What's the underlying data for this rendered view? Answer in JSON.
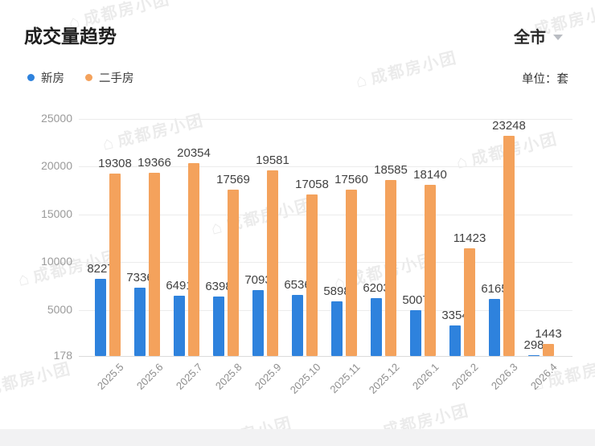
{
  "header": {
    "title": "成交量趋势",
    "region_selector": {
      "label": "全市",
      "dropdown_icon": "chevron-down-icon"
    },
    "unit_label": "单位：套"
  },
  "legend": [
    {
      "label": "新房",
      "color": "#2e82dd"
    },
    {
      "label": "二手房",
      "color": "#f4a25c"
    }
  ],
  "watermark": {
    "icon": "house-icon",
    "text": "成都房小团"
  },
  "chart_data": {
    "type": "bar",
    "title": "成交量趋势",
    "unit": "套",
    "categories": [
      "2025.5",
      "2025.6",
      "2025.7",
      "2025.8",
      "2025.9",
      "2025.10",
      "2025.11",
      "2025.12",
      "2026.1",
      "2026.2",
      "2026.3",
      "2026.4"
    ],
    "series": [
      {
        "name": "新房",
        "color": "#2e82dd",
        "values": [
          8227,
          7336,
          6491,
          6398,
          7093,
          6536,
          5898,
          6203,
          5007,
          3354,
          6165,
          298
        ]
      },
      {
        "name": "二手房",
        "color": "#f4a25c",
        "values": [
          19308,
          19366,
          20354,
          17569,
          19581,
          17058,
          17560,
          18585,
          18140,
          11423,
          23248,
          1443
        ]
      }
    ],
    "y_axis": {
      "min": 178,
      "max": 25000,
      "ticks": [
        178,
        5000,
        10000,
        15000,
        20000,
        25000
      ]
    },
    "grid": true,
    "legend_position": "top-left",
    "value_labels": true
  }
}
